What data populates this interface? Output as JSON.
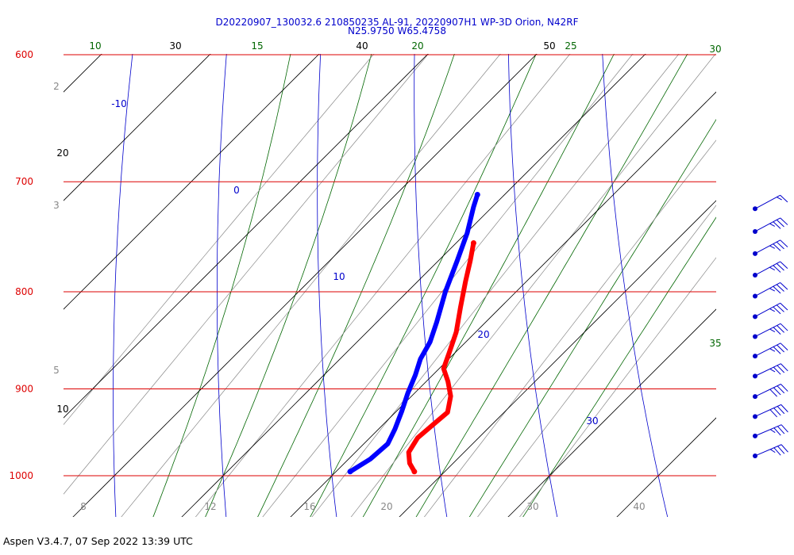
{
  "header": {
    "line1": "D20220907_130032.6 210850235 AL-91, 20220907H1 WP-3D Orion, N42RF",
    "line2": "N25.9750 W65.4758"
  },
  "footer": {
    "text": "Aspen V3.4.7, 07 Sep 2022  13:39 UTC"
  },
  "colors": {
    "isobar": "#dd0000",
    "isotherm": "#000000",
    "dry_adiabat": "#0000cc",
    "moist_adiabat": "#006600",
    "mixing_ratio": "#888888",
    "temperature": "#ff0000",
    "dewpoint": "#0000ff",
    "wind_barb": "#0000cc"
  },
  "chart_data": {
    "type": "skew-t",
    "title": "D20220907_130032.6 210850235 AL-91, 20220907H1 WP-3D Orion, N42RF",
    "subtitle": "N25.9750 W65.4758",
    "pressure_range_hPa": [
      600,
      1000
    ],
    "isobar_labels": [
      "600",
      "700",
      "800",
      "900",
      "1000"
    ],
    "isotherm_labels": [
      {
        "text": "30",
        "value": 30
      },
      {
        "text": "40",
        "value": 40
      },
      {
        "text": "50",
        "value": 50
      },
      {
        "text": "20",
        "value": 20
      },
      {
        "text": "10",
        "value": 10
      }
    ],
    "dry_adiabat_labels": [
      "-10",
      "0",
      "10",
      "20",
      "30"
    ],
    "moist_adiabat_labels": [
      "10",
      "15",
      "20",
      "25",
      "30",
      "35"
    ],
    "mixing_ratio_labels": [
      "2",
      "3",
      "5",
      "8",
      "12",
      "16",
      "20",
      "30",
      "40"
    ],
    "temperature": [
      {
        "p": 754,
        "t": 11.6
      },
      {
        "p": 770,
        "t": 12.9
      },
      {
        "p": 790,
        "t": 14.4
      },
      {
        "p": 815,
        "t": 16.3
      },
      {
        "p": 840,
        "t": 18.2
      },
      {
        "p": 862,
        "t": 19.5
      },
      {
        "p": 878,
        "t": 20.4
      },
      {
        "p": 892,
        "t": 22.0
      },
      {
        "p": 908,
        "t": 23.6
      },
      {
        "p": 926,
        "t": 24.8
      },
      {
        "p": 940,
        "t": 24.6
      },
      {
        "p": 955,
        "t": 24.4
      },
      {
        "p": 972,
        "t": 24.9
      },
      {
        "p": 985,
        "t": 26.0
      },
      {
        "p": 995,
        "t": 27.2
      }
    ],
    "dewpoint": [
      {
        "p": 711,
        "t": 7.5
      },
      {
        "p": 722,
        "t": 8.3
      },
      {
        "p": 745,
        "t": 10.1
      },
      {
        "p": 770,
        "t": 11.7
      },
      {
        "p": 800,
        "t": 13.5
      },
      {
        "p": 830,
        "t": 15.5
      },
      {
        "p": 850,
        "t": 16.7
      },
      {
        "p": 868,
        "t": 17.4
      },
      {
        "p": 885,
        "t": 18.4
      },
      {
        "p": 905,
        "t": 19.4
      },
      {
        "p": 925,
        "t": 20.5
      },
      {
        "p": 945,
        "t": 21.5
      },
      {
        "p": 962,
        "t": 22.2
      },
      {
        "p": 980,
        "t": 22.0
      },
      {
        "p": 995,
        "t": 21.3
      }
    ],
    "wind_barbs": [
      {
        "p": 715,
        "speed_kt": 15,
        "dir": 100
      },
      {
        "p": 735,
        "speed_kt": 35,
        "dir": 100
      },
      {
        "p": 755,
        "speed_kt": 35,
        "dir": 100
      },
      {
        "p": 775,
        "speed_kt": 35,
        "dir": 100
      },
      {
        "p": 795,
        "speed_kt": 35,
        "dir": 100
      },
      {
        "p": 815,
        "speed_kt": 35,
        "dir": 100
      },
      {
        "p": 835,
        "speed_kt": 35,
        "dir": 95
      },
      {
        "p": 855,
        "speed_kt": 35,
        "dir": 95
      },
      {
        "p": 876,
        "speed_kt": 35,
        "dir": 90
      },
      {
        "p": 898,
        "speed_kt": 40,
        "dir": 90
      },
      {
        "p": 920,
        "speed_kt": 40,
        "dir": 85
      },
      {
        "p": 942,
        "speed_kt": 35,
        "dir": 80
      },
      {
        "p": 965,
        "speed_kt": 35,
        "dir": 80
      }
    ]
  }
}
